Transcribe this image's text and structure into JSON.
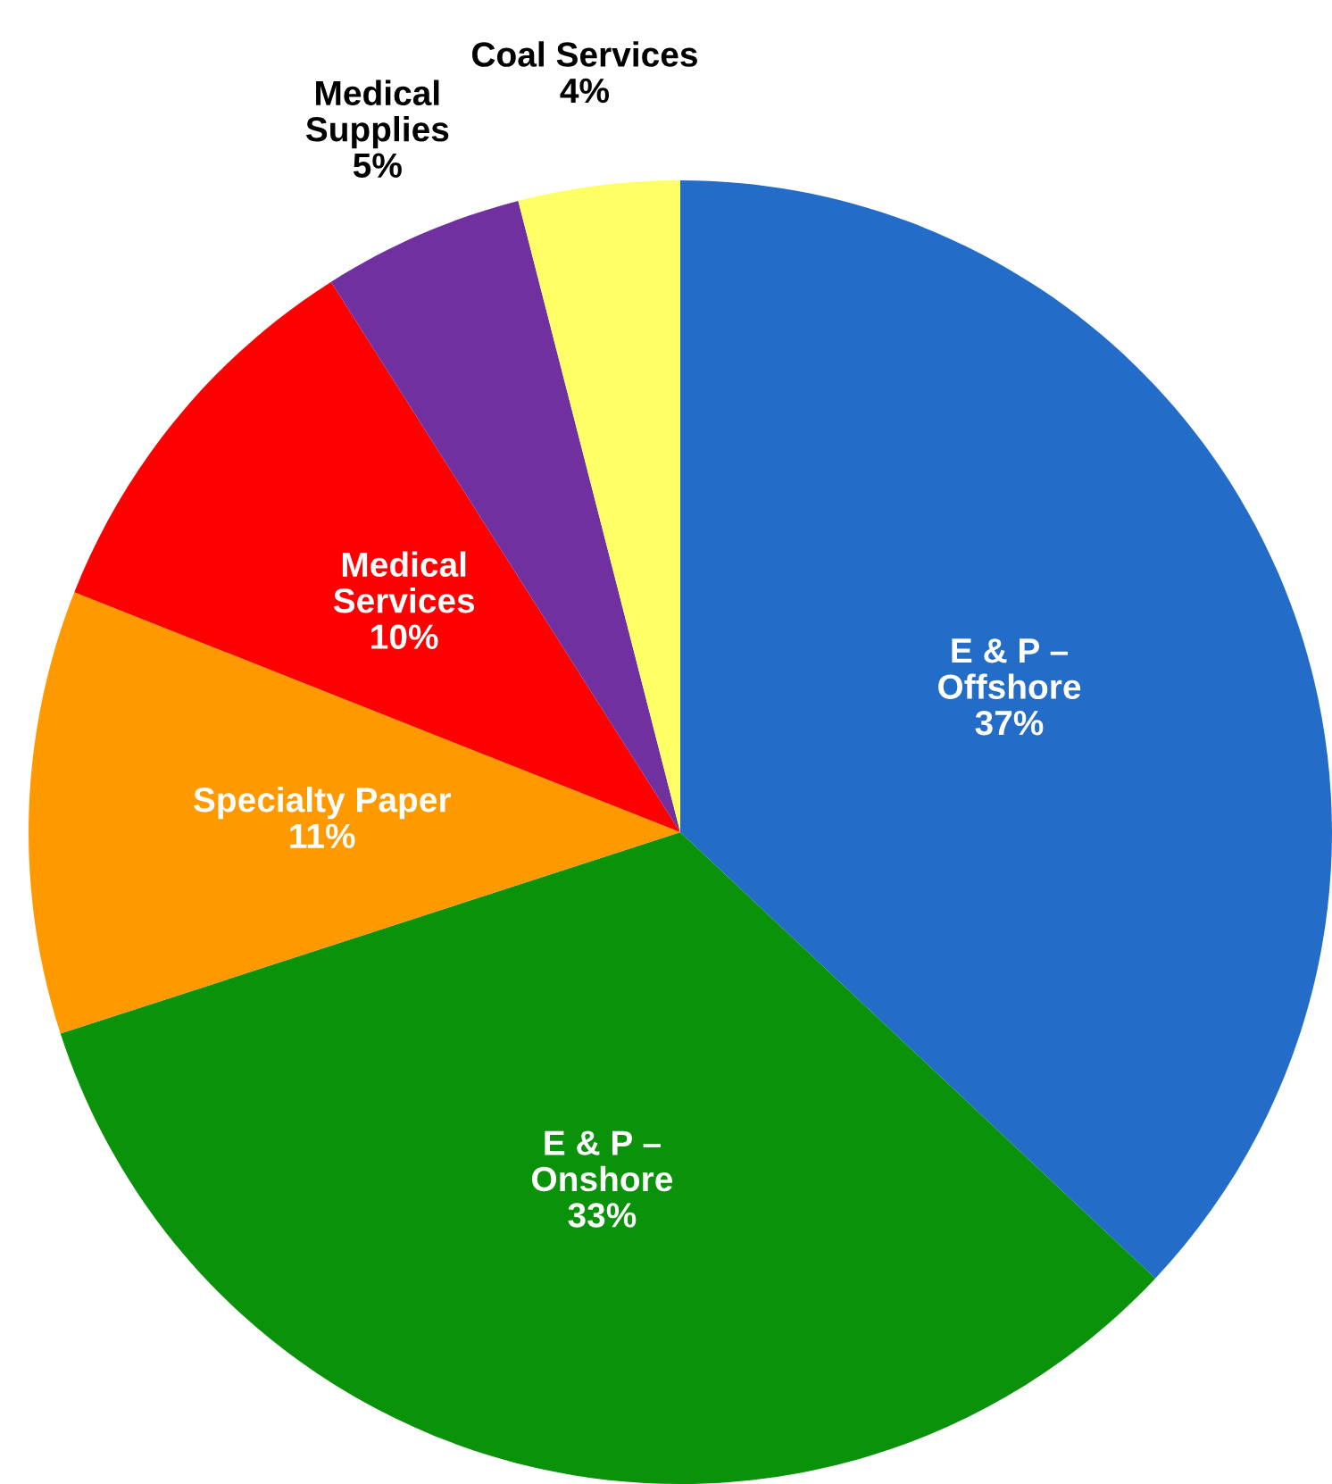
{
  "chart_data": {
    "type": "pie",
    "categories": [
      "E & P –\nOffshore",
      "E & P –\nOnshore",
      "Specialty Paper",
      "Medical\nServices",
      "Medical\nSupplies",
      "Coal Services"
    ],
    "values": [
      37,
      33,
      11,
      10,
      5,
      4
    ],
    "value_labels": [
      "37%",
      "33%",
      "11%",
      "10%",
      "5%",
      "4%"
    ],
    "colors": [
      "#236dc8",
      "#0a920a",
      "#ff9900",
      "#ff0000",
      "#7030a0",
      "#ffff66"
    ]
  }
}
